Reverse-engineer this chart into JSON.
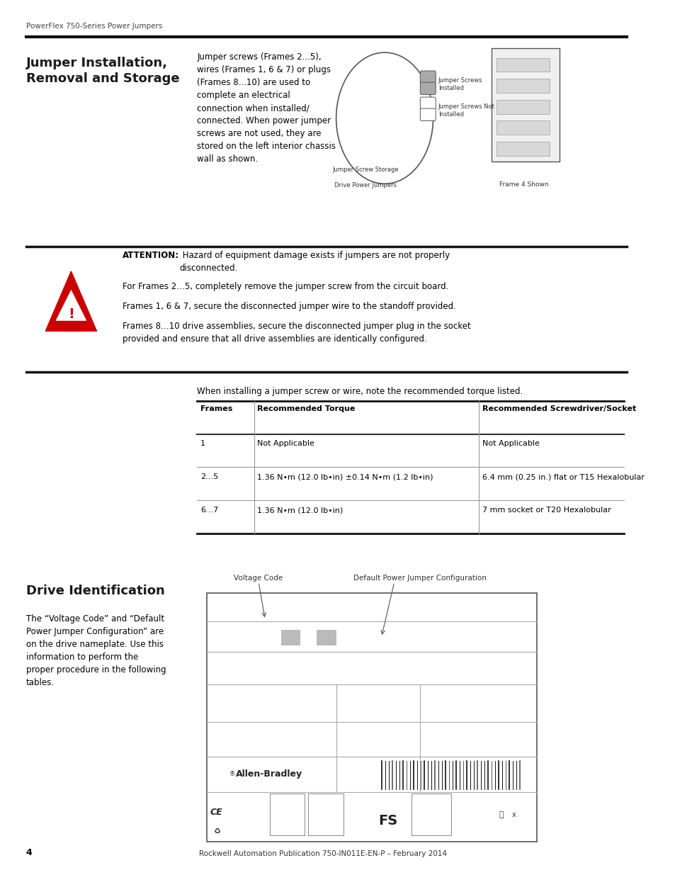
{
  "page_header": "PowerFlex 750-Series Power Jumpers",
  "page_number": "4",
  "footer_text": "Rockwell Automation Publication 750-IN011E-EN-P – February 2014",
  "section1_title": "Jumper Installation,\nRemoval and Storage",
  "section1_body": "Jumper screws (Frames 2...5),\nwires (Frames 1, 6 & 7) or plugs\n(Frames 8...10) are used to\ncomplete an electrical\nconnection when installed/\nconnected. When power jumper\nscrews are not used, they are\nstored on the left interior chassis\nwall as shown.",
  "attention_title": "ATTENTION:",
  "attention_text1": " Hazard of equipment damage exists if jumpers are not properly\ndisconnected.",
  "attention_text2": "For Frames 2…5, completely remove the jumper screw from the circuit board.",
  "attention_text3": "Frames 1, 6 & 7, secure the disconnected jumper wire to the standoff provided.",
  "attention_text4": "Frames 8…10 drive assemblies, secure the disconnected jumper plug in the socket\nprovided and ensure that all drive assemblies are identically configured.",
  "torque_intro": "When installing a jumper screw or wire, note the recommended torque listed.",
  "table_headers": [
    "Frames",
    "Recommended Torque",
    "Recommended Screwdriver/Socket"
  ],
  "table_rows": [
    [
      "1",
      "Not Applicable",
      "Not Applicable"
    ],
    [
      "2…5",
      "1.36 N•m (12.0 lb•in) ±0.14 N•m (1.2 lb•in)",
      "6.4 mm (0.25 in.) flat or T15 Hexalobular"
    ],
    [
      "6…7",
      "1.36 N•m (12.0 lb•in)",
      "7 mm socket or T20 Hexalobular"
    ]
  ],
  "section2_title": "Drive Identification",
  "section2_body": "The “Voltage Code” and “Default\nPower Jumper Configuration” are\non the drive nameplate. Use this\ninformation to perform the\nproper procedure in the following\ntables.",
  "background_color": "#ffffff",
  "text_color": "#000000",
  "section_title_color": "#1a1a1a"
}
